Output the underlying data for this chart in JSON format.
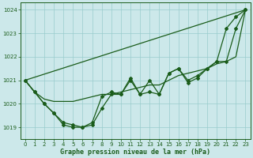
{
  "title": "Graphe pression niveau de la mer (hPa)",
  "bg_color": "#cce8ea",
  "grid_color": "#99cccc",
  "line_color": "#1a5c1a",
  "xlim": [
    -0.5,
    23.5
  ],
  "ylim": [
    1018.5,
    1024.3
  ],
  "yticks": [
    1019,
    1020,
    1021,
    1022,
    1023,
    1024
  ],
  "xticks": [
    0,
    1,
    2,
    3,
    4,
    5,
    6,
    7,
    8,
    9,
    10,
    11,
    12,
    13,
    14,
    15,
    16,
    17,
    18,
    19,
    20,
    21,
    22,
    23
  ],
  "series_main": {
    "x": [
      0,
      1,
      2,
      3,
      4,
      5,
      6,
      7,
      8,
      9,
      10,
      11,
      12,
      13,
      14,
      15,
      16,
      17,
      18,
      19,
      20,
      21,
      22,
      23
    ],
    "y": [
      1021.0,
      1020.5,
      1020.0,
      1019.6,
      1019.1,
      1019.0,
      1019.0,
      1019.1,
      1019.8,
      1020.4,
      1020.4,
      1021.1,
      1020.4,
      1021.0,
      1020.4,
      1021.3,
      1021.5,
      1020.9,
      1021.1,
      1021.5,
      1021.8,
      1023.2,
      1023.7,
      1024.0
    ]
  },
  "series_smooth1": {
    "x": [
      0,
      1,
      2,
      3,
      4,
      5,
      6,
      7,
      8,
      9,
      10,
      11,
      12,
      13,
      14,
      15,
      16,
      17,
      18,
      19,
      20,
      21,
      22,
      23
    ],
    "y": [
      1021.0,
      1020.5,
      1020.2,
      1020.1,
      1020.1,
      1020.1,
      1020.2,
      1020.3,
      1020.4,
      1020.4,
      1020.5,
      1020.6,
      1020.7,
      1020.8,
      1020.8,
      1021.0,
      1021.2,
      1021.3,
      1021.4,
      1021.5,
      1021.7,
      1021.8,
      1022.0,
      1024.0
    ]
  },
  "series_smooth2": {
    "x": [
      0,
      23
    ],
    "y": [
      1021.0,
      1024.0
    ]
  },
  "series_detail": {
    "x": [
      0,
      1,
      2,
      3,
      4,
      5,
      6,
      7,
      8,
      9,
      10,
      11,
      12,
      13,
      14,
      15,
      16,
      17,
      18,
      19,
      20,
      21,
      22,
      23
    ],
    "y": [
      1021.0,
      1020.5,
      1020.0,
      1019.6,
      1019.2,
      1019.1,
      1019.0,
      1019.2,
      1020.3,
      1020.5,
      1020.4,
      1021.0,
      1020.4,
      1020.5,
      1020.4,
      1021.3,
      1021.5,
      1021.0,
      1021.2,
      1021.5,
      1021.8,
      1021.8,
      1023.2,
      1024.0
    ]
  }
}
